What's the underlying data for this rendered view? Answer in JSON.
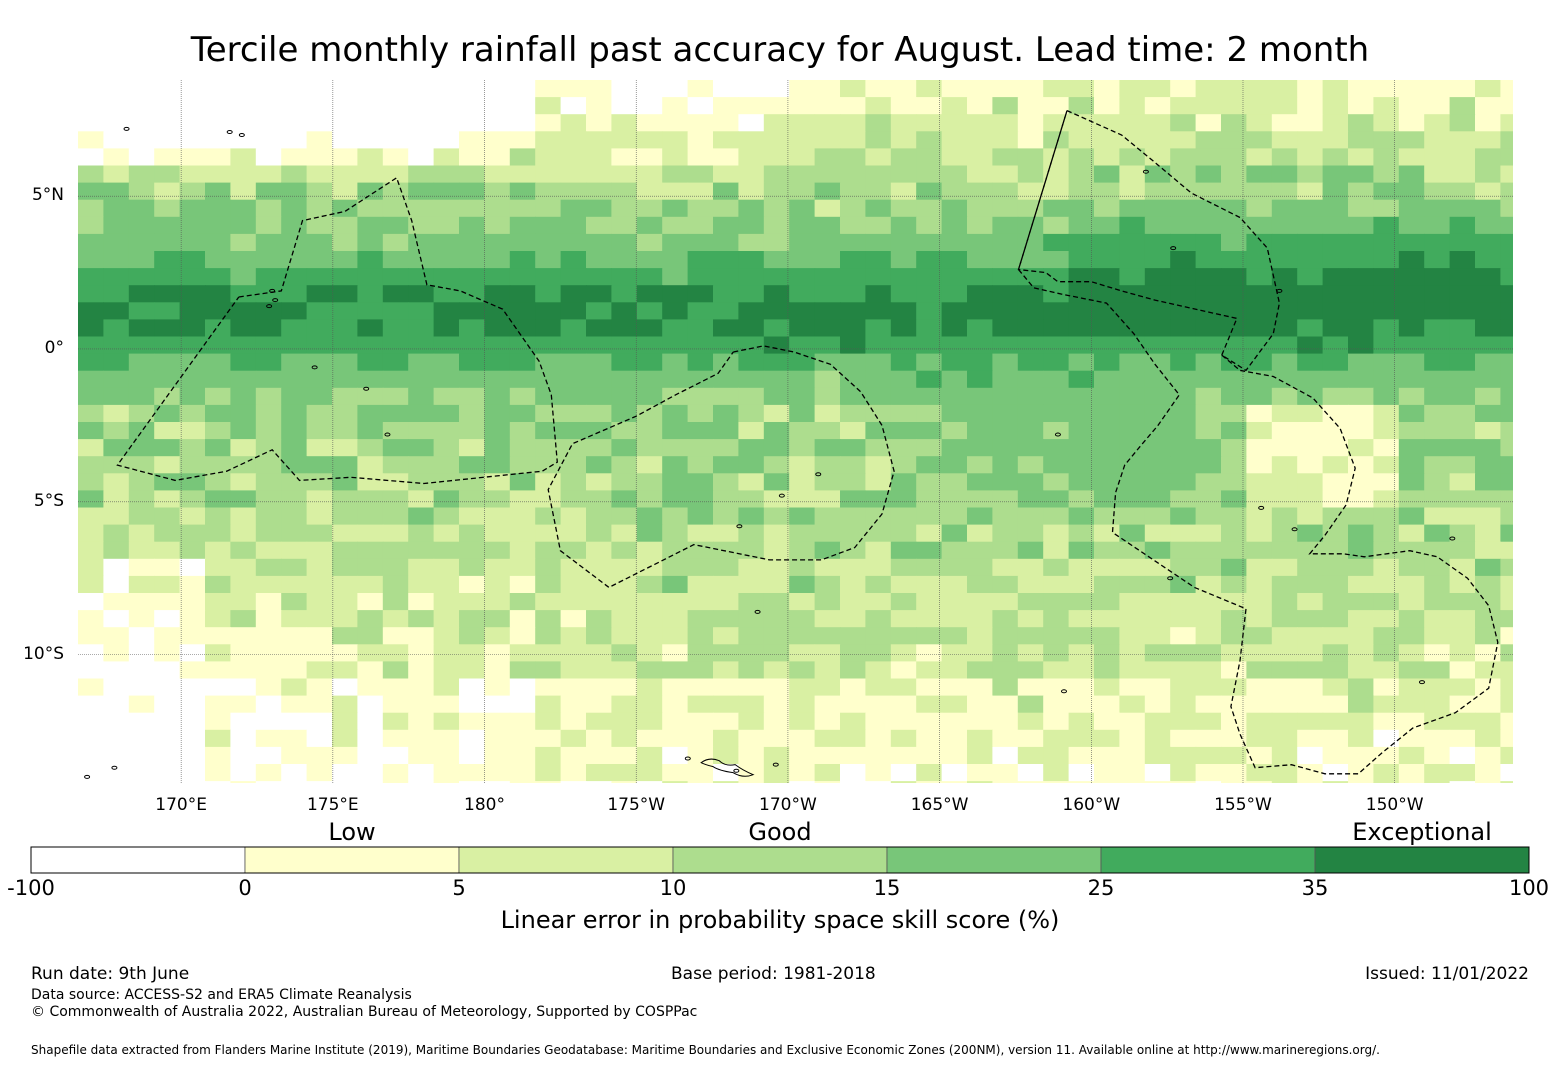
{
  "title": "Tercile monthly rainfall past accuracy for August. Lead time: 2 month",
  "map": {
    "lon_range": [
      166.6,
      213.9
    ],
    "lat_range": [
      -14.2,
      8.8
    ],
    "lon_ticks": [
      {
        "lon": 170,
        "label": "170°E"
      },
      {
        "lon": 175,
        "label": "175°E"
      },
      {
        "lon": 180,
        "label": "180°"
      },
      {
        "lon": 185,
        "label": "175°W"
      },
      {
        "lon": 190,
        "label": "170°W"
      },
      {
        "lon": 195,
        "label": "165°W"
      },
      {
        "lon": 200,
        "label": "160°W"
      },
      {
        "lon": 205,
        "label": "155°W"
      },
      {
        "lon": 210,
        "label": "150°W"
      }
    ],
    "lat_ticks": [
      {
        "lat": 5,
        "label": "5°N"
      },
      {
        "lat": 0,
        "label": "0°"
      },
      {
        "lat": -5,
        "label": "5°S"
      },
      {
        "lat": -10,
        "label": "10°S"
      }
    ],
    "eez_boundaries": [
      [
        [
          171.9,
          1.7
        ],
        [
          173.3,
          1.9
        ],
        [
          174.0,
          4.2
        ],
        [
          175.4,
          4.5
        ],
        [
          177.1,
          5.6
        ],
        [
          177.6,
          4.2
        ],
        [
          178.1,
          2.1
        ],
        [
          179.2,
          1.9
        ],
        [
          180.6,
          1.3
        ],
        [
          181.8,
          -0.4
        ],
        [
          182.2,
          -1.5
        ],
        [
          182.4,
          -3.7
        ],
        [
          181.9,
          -4.0
        ],
        [
          178.0,
          -4.4
        ],
        [
          175.6,
          -4.2
        ],
        [
          173.9,
          -4.3
        ],
        [
          173.0,
          -3.3
        ],
        [
          171.5,
          -4.0
        ],
        [
          169.8,
          -4.3
        ],
        [
          167.9,
          -3.8
        ],
        [
          171.9,
          1.7
        ]
      ],
      [
        [
          188.2,
          -0.1
        ],
        [
          189.2,
          0.1
        ],
        [
          190.2,
          -0.1
        ],
        [
          191.4,
          -0.5
        ],
        [
          192.4,
          -1.4
        ],
        [
          193.1,
          -2.5
        ],
        [
          193.5,
          -4.0
        ],
        [
          193.1,
          -5.4
        ],
        [
          192.2,
          -6.5
        ],
        [
          191.1,
          -6.9
        ],
        [
          189.4,
          -6.9
        ],
        [
          186.9,
          -6.4
        ],
        [
          184.1,
          -7.8
        ],
        [
          182.5,
          -6.6
        ],
        [
          182.1,
          -4.6
        ],
        [
          182.9,
          -3.1
        ],
        [
          185.0,
          -2.2
        ],
        [
          186.3,
          -1.5
        ],
        [
          187.7,
          -0.8
        ],
        [
          188.2,
          -0.1
        ]
      ],
      [
        [
          199.2,
          7.8
        ],
        [
          201.0,
          7.0
        ],
        [
          202.1,
          6.1
        ],
        [
          203.3,
          5.1
        ],
        [
          204.9,
          4.3
        ],
        [
          205.8,
          3.3
        ],
        [
          206.2,
          1.5
        ],
        [
          206.0,
          0.5
        ],
        [
          205.1,
          -0.7
        ],
        [
          204.3,
          -0.2
        ],
        [
          204.8,
          1.0
        ],
        [
          202.1,
          1.6
        ],
        [
          201.0,
          1.9
        ],
        [
          200.0,
          2.2
        ],
        [
          198.9,
          2.2
        ],
        [
          198.5,
          2.5
        ],
        [
          197.6,
          2.6
        ],
        [
          199.2,
          7.8
        ]
      ],
      [
        [
          204.3,
          -0.2
        ],
        [
          204.9,
          -0.7
        ],
        [
          206.0,
          -0.9
        ],
        [
          207.3,
          -1.6
        ],
        [
          208.2,
          -2.6
        ],
        [
          208.7,
          -3.9
        ],
        [
          208.4,
          -5.1
        ],
        [
          207.7,
          -6.1
        ],
        [
          207.2,
          -6.7
        ],
        [
          208.3,
          -6.7
        ],
        [
          209.0,
          -6.8
        ],
        [
          210.5,
          -6.6
        ],
        [
          211.4,
          -6.8
        ],
        [
          212.4,
          -7.5
        ],
        [
          213.1,
          -8.4
        ],
        [
          213.4,
          -9.6
        ],
        [
          213.1,
          -11.1
        ],
        [
          212.0,
          -11.9
        ],
        [
          210.6,
          -12.4
        ],
        [
          209.6,
          -13.2
        ],
        [
          208.8,
          -13.9
        ],
        [
          207.7,
          -13.9
        ],
        [
          206.6,
          -13.6
        ],
        [
          205.4,
          -13.7
        ],
        [
          204.9,
          -12.6
        ],
        [
          204.6,
          -11.7
        ],
        [
          204.9,
          -10.2
        ],
        [
          205.1,
          -8.5
        ],
        [
          203.4,
          -7.8
        ],
        [
          200.7,
          -6.0
        ],
        [
          200.8,
          -4.7
        ],
        [
          201.1,
          -3.8
        ],
        [
          201.6,
          -3.2
        ],
        [
          202.2,
          -2.5
        ],
        [
          202.9,
          -1.5
        ],
        [
          202.1,
          -0.5
        ],
        [
          201.4,
          0.5
        ],
        [
          200.5,
          1.5
        ],
        [
          199.0,
          1.8
        ],
        [
          198.1,
          2.0
        ],
        [
          197.6,
          2.6
        ],
        [
          199.2,
          7.8
        ]
      ]
    ],
    "island_labels_shown": false
  },
  "colorbar": {
    "categories": [
      {
        "label": "Low",
        "at": 2.5
      },
      {
        "label": "Good",
        "at": 12.5
      },
      {
        "label": "Exceptional",
        "at": 67.5
      }
    ],
    "bins": [
      {
        "from": -100,
        "to": 0,
        "color": "#ffffff"
      },
      {
        "from": 0,
        "to": 5,
        "color": "#ffffcc"
      },
      {
        "from": 5,
        "to": 10,
        "color": "#d9f0a3"
      },
      {
        "from": 10,
        "to": 15,
        "color": "#addd8e"
      },
      {
        "from": 15,
        "to": 25,
        "color": "#78c679"
      },
      {
        "from": 25,
        "to": 35,
        "color": "#41ab5d"
      },
      {
        "from": 35,
        "to": 100,
        "color": "#238443"
      }
    ],
    "tick_labels": [
      "-100",
      "0",
      "5",
      "10",
      "15",
      "25",
      "35",
      "100"
    ],
    "title": "Linear error in probability space skill score (%)"
  },
  "footer": {
    "run_date": "Run date: 9th June",
    "base_period": "Base period: 1981-2018",
    "issued": "Issued: 11/01/2022",
    "data_source": "Data source: ACCESS-S2 and ERA5 Climate Reanalysis",
    "copyright": "© Commonwealth of Australia 2022, Australian Bureau of Meteorology, Supported by COSPPac",
    "shapefile": "Shapefile data extracted from Flanders Marine Institute (2019), Maritime Boundaries Geodatabase: Maritime Boundaries and Exclusive Economic Zones (200NM), version 11. Available online at http://www.marineregions.org/."
  }
}
